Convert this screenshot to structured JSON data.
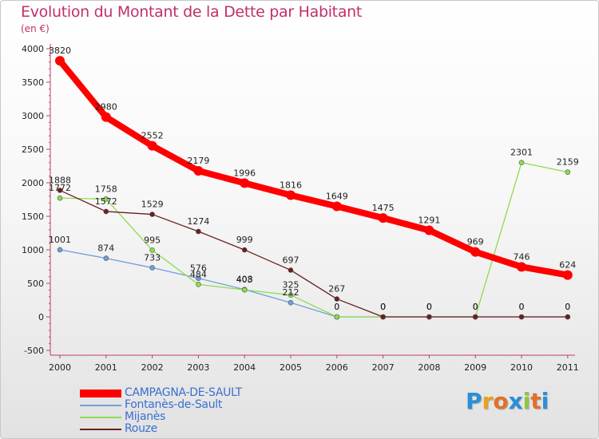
{
  "header": {
    "title": "Evolution du Montant de la Dette par Habitant",
    "subtitle": "(en €)"
  },
  "logo": {
    "text": "Proxiti",
    "colors": [
      "#2a8fd6",
      "#e8a020",
      "#e2702a",
      "#2a8fd6",
      "#8cc63f",
      "#e2702a",
      "#2a8fd6"
    ]
  },
  "chart_data": {
    "type": "line",
    "title": "Evolution du Montant de la Dette par Habitant",
    "subtitle": "(en €)",
    "x": [
      "2000",
      "2001",
      "2002",
      "2003",
      "2004",
      "2005",
      "2006",
      "2007",
      "2008",
      "2009",
      "2010",
      "2011"
    ],
    "ylim": [
      -500,
      4000
    ],
    "yticks": [
      -500,
      0,
      500,
      1000,
      1500,
      2000,
      2500,
      3000,
      3500,
      4000
    ],
    "grid": false,
    "legend_position": "bottom-left",
    "series": [
      {
        "name": "CAMPAGNA-DE-SAULT",
        "color": "#ff0000",
        "values": [
          3820,
          2980,
          2552,
          2179,
          1996,
          1816,
          1649,
          1475,
          1291,
          969,
          746,
          624
        ],
        "labels": [
          "3820",
          "2980",
          "2552",
          "2179",
          "1996",
          "1816",
          "1649",
          "1475",
          "1291",
          "969",
          "746",
          "624"
        ]
      },
      {
        "name": "Fontanès-de-Sault",
        "color": "#6fa0d8",
        "values": [
          1001,
          874,
          733,
          576,
          408,
          212,
          0,
          0,
          0,
          0,
          0,
          0
        ],
        "labels": [
          "1001",
          "874",
          "733",
          "576",
          "408",
          "212",
          "0",
          "0",
          "0",
          "0",
          "0",
          "0"
        ]
      },
      {
        "name": "Mijanès",
        "color": "#8cdc50",
        "values": [
          1772,
          1758,
          995,
          484,
          403,
          325,
          0,
          0,
          0,
          0,
          2301,
          2159
        ],
        "labels": [
          "1772",
          "1758",
          "995",
          "484",
          "403",
          "325",
          "0",
          "0",
          "0",
          "0",
          "2301",
          "2159"
        ]
      },
      {
        "name": "Rouze",
        "color": "#6b1f1f",
        "values": [
          1888,
          1572,
          1529,
          1274,
          999,
          697,
          267,
          0,
          0,
          0,
          0,
          0
        ],
        "labels": [
          "1888",
          "1572",
          "1529",
          "1274",
          "999",
          "697",
          "267",
          "0",
          "0",
          "0",
          "0",
          "0"
        ]
      }
    ]
  }
}
